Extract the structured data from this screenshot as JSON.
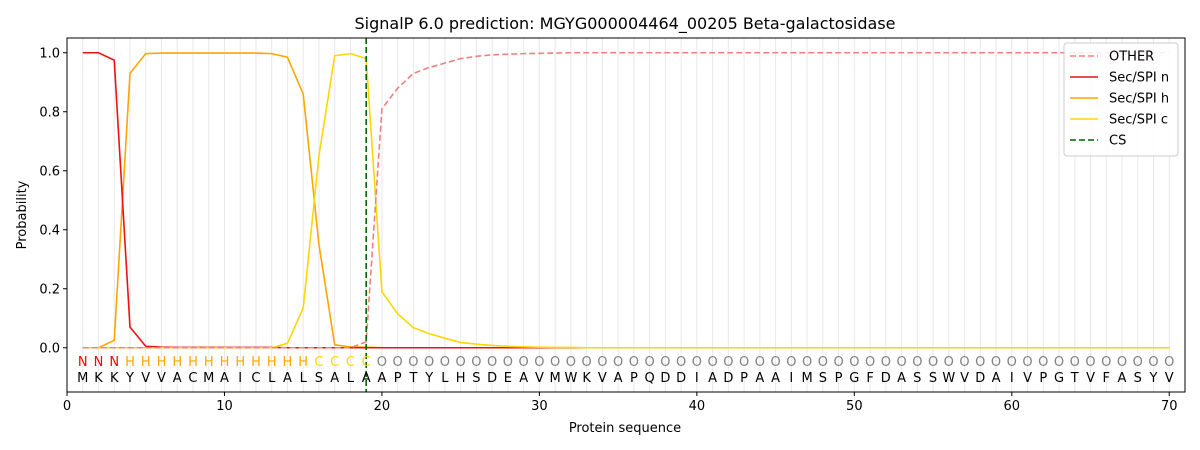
{
  "chart_data": {
    "type": "line",
    "title": "SignalP 6.0 prediction: MGYG000004464_00205 Beta-galactosidase",
    "xlabel": "Protein sequence",
    "ylabel": "Probability",
    "xlim": [
      0,
      71
    ],
    "ylim": [
      -0.15,
      1.05
    ],
    "x_ticks": [
      0,
      10,
      20,
      30,
      40,
      50,
      60,
      70
    ],
    "y_ticks": [
      0.0,
      0.2,
      0.4,
      0.6,
      0.8,
      1.0
    ],
    "grid": "vertical lines at each residue position",
    "legend_position": "top-right",
    "sequence": [
      "M",
      "K",
      "K",
      "Y",
      "V",
      "V",
      "A",
      "C",
      "M",
      "A",
      "I",
      "C",
      "L",
      "A",
      "L",
      "S",
      "A",
      "L",
      "A",
      "A",
      "P",
      "T",
      "Y",
      "L",
      "H",
      "S",
      "D",
      "E",
      "A",
      "V",
      "M",
      "W",
      "K",
      "V",
      "A",
      "P",
      "Q",
      "D",
      "D",
      "I",
      "A",
      "D",
      "P",
      "A",
      "A",
      "I",
      "M",
      "S",
      "P",
      "G",
      "F",
      "D",
      "A",
      "S",
      "S",
      "W",
      "V",
      "D",
      "A",
      "I",
      "V",
      "P",
      "G",
      "T",
      "V",
      "F",
      "A",
      "S",
      "Y",
      "V"
    ],
    "region_labels": [
      "N",
      "N",
      "N",
      "H",
      "H",
      "H",
      "H",
      "H",
      "H",
      "H",
      "H",
      "H",
      "H",
      "H",
      "H",
      "C",
      "C",
      "C",
      "C",
      "O",
      "O",
      "O",
      "O",
      "O",
      "O",
      "O",
      "O",
      "O",
      "O",
      "O",
      "O",
      "O",
      "O",
      "O",
      "O",
      "O",
      "O",
      "O",
      "O",
      "O",
      "O",
      "O",
      "O",
      "O",
      "O",
      "O",
      "O",
      "O",
      "O",
      "O",
      "O",
      "O",
      "O",
      "O",
      "O",
      "O",
      "O",
      "O",
      "O",
      "O",
      "O",
      "O",
      "O",
      "O",
      "O",
      "O",
      "O",
      "O",
      "O",
      "O"
    ],
    "region_colors": {
      "N": "#ff0000",
      "H": "#ffa500",
      "C": "#ffd700",
      "O": "#808080"
    },
    "cleavage_site": 19,
    "series": [
      {
        "name": "OTHER",
        "color": "#f08080",
        "dash": "dashed",
        "values": [
          0.0,
          0.0,
          0.0,
          0.0,
          0.0,
          0.0,
          0.0,
          0.0,
          0.0,
          0.0,
          0.0,
          0.0,
          0.0,
          0.0,
          0.0,
          0.0,
          0.0,
          0.0,
          0.02,
          0.81,
          0.88,
          0.93,
          0.95,
          0.965,
          0.98,
          0.988,
          0.993,
          0.995,
          0.997,
          0.998,
          0.999,
          1.0,
          1.0,
          1.0,
          1.0,
          1.0,
          1.0,
          1.0,
          1.0,
          1.0,
          1.0,
          1.0,
          1.0,
          1.0,
          1.0,
          1.0,
          1.0,
          1.0,
          1.0,
          1.0,
          1.0,
          1.0,
          1.0,
          1.0,
          1.0,
          1.0,
          1.0,
          1.0,
          1.0,
          1.0,
          1.0,
          1.0,
          1.0,
          1.0,
          1.0,
          1.0,
          1.0,
          1.0,
          1.0,
          1.0
        ]
      },
      {
        "name": "Sec/SPI n",
        "color": "#ee1111",
        "dash": "solid",
        "values": [
          1.0,
          1.0,
          0.975,
          0.07,
          0.005,
          0.002,
          0.001,
          0.001,
          0.001,
          0.001,
          0.001,
          0.001,
          0.001,
          0.0,
          0.0,
          0.0,
          0.0,
          0.0,
          0.0,
          0.0,
          0.0,
          0.0,
          0.0,
          0.0,
          0.0,
          0.0,
          0.0,
          0.0,
          0.0,
          0.0,
          0.0,
          0.0,
          0.0,
          0.0,
          0.0,
          0.0,
          0.0,
          0.0,
          0.0,
          0.0,
          0.0,
          0.0,
          0.0,
          0.0,
          0.0,
          0.0,
          0.0,
          0.0,
          0.0,
          0.0,
          0.0,
          0.0,
          0.0,
          0.0,
          0.0,
          0.0,
          0.0,
          0.0,
          0.0,
          0.0,
          0.0,
          0.0,
          0.0,
          0.0,
          0.0,
          0.0,
          0.0,
          0.0,
          0.0,
          0.0
        ]
      },
      {
        "name": "Sec/SPI h",
        "color": "#ffa500",
        "dash": "solid",
        "values": [
          0.0,
          0.0,
          0.025,
          0.93,
          0.997,
          0.999,
          0.999,
          0.999,
          0.999,
          0.999,
          0.999,
          0.999,
          0.997,
          0.985,
          0.86,
          0.35,
          0.01,
          0.003,
          0.002,
          0.0,
          0.0,
          0.0,
          0.0,
          0.0,
          0.0,
          0.0,
          0.0,
          0.0,
          0.0,
          0.0,
          0.0,
          0.0,
          0.0,
          0.0,
          0.0,
          0.0,
          0.0,
          0.0,
          0.0,
          0.0,
          0.0,
          0.0,
          0.0,
          0.0,
          0.0,
          0.0,
          0.0,
          0.0,
          0.0,
          0.0,
          0.0,
          0.0,
          0.0,
          0.0,
          0.0,
          0.0,
          0.0,
          0.0,
          0.0,
          0.0,
          0.0,
          0.0,
          0.0,
          0.0,
          0.0,
          0.0,
          0.0,
          0.0,
          0.0,
          0.0
        ]
      },
      {
        "name": "Sec/SPI c",
        "color": "#ffd700",
        "dash": "solid",
        "values": [
          0.0,
          0.0,
          0.0,
          0.0,
          0.0,
          0.0,
          0.0,
          0.0,
          0.0,
          0.0,
          0.0,
          0.0,
          0.0,
          0.015,
          0.135,
          0.65,
          0.99,
          0.997,
          0.98,
          0.19,
          0.115,
          0.068,
          0.048,
          0.032,
          0.018,
          0.012,
          0.008,
          0.005,
          0.003,
          0.002,
          0.001,
          0.001,
          0.0,
          0.0,
          0.0,
          0.0,
          0.0,
          0.0,
          0.0,
          0.0,
          0.0,
          0.0,
          0.0,
          0.0,
          0.0,
          0.0,
          0.0,
          0.0,
          0.0,
          0.0,
          0.0,
          0.0,
          0.0,
          0.0,
          0.0,
          0.0,
          0.0,
          0.0,
          0.0,
          0.0,
          0.0,
          0.0,
          0.0,
          0.0,
          0.0,
          0.0,
          0.0,
          0.0,
          0.0,
          0.0
        ]
      }
    ],
    "legend": [
      {
        "label": "OTHER",
        "color": "#f08080",
        "dash": "dashed"
      },
      {
        "label": "Sec/SPI n",
        "color": "#ee1111",
        "dash": "solid"
      },
      {
        "label": "Sec/SPI h",
        "color": "#ffa500",
        "dash": "solid"
      },
      {
        "label": "Sec/SPI c",
        "color": "#ffd700",
        "dash": "solid"
      },
      {
        "label": "CS",
        "color": "#006400",
        "dash": "dashed"
      }
    ]
  }
}
